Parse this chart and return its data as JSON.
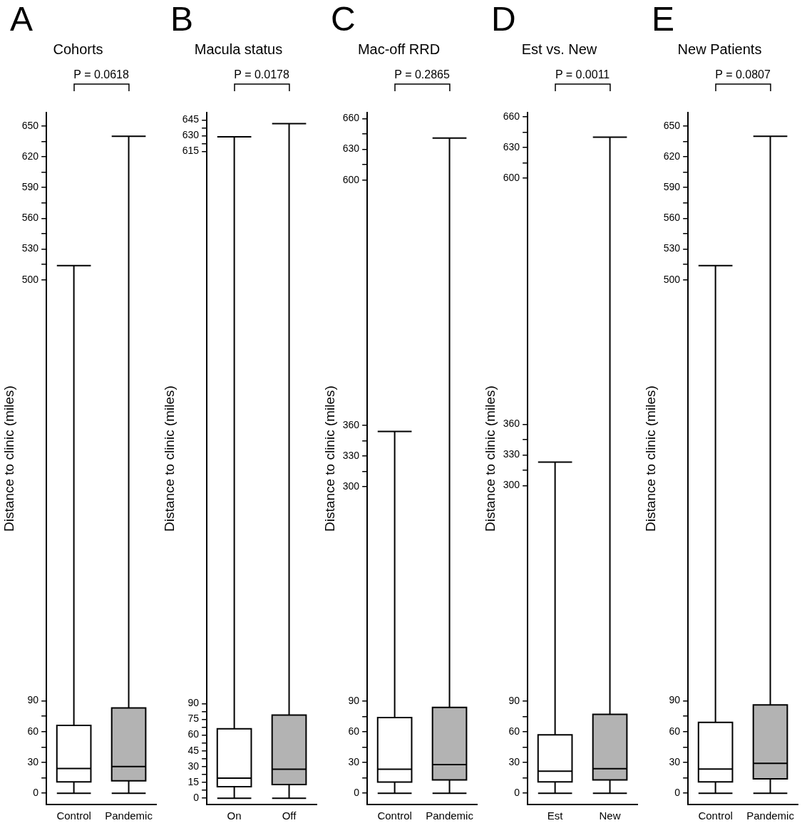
{
  "chart_data": [
    {
      "type": "box",
      "title": "Cohorts",
      "ylabel": "Distance to clinic (miles)",
      "annotations": [
        "A",
        "P = 0.0618"
      ],
      "categories": [
        "Control",
        "Pandemic"
      ],
      "colors": [
        "#ffffff",
        "#b3b3b3"
      ],
      "boxes": [
        {
          "low": 0,
          "q1": 11,
          "median": 24,
          "q3": 66,
          "high": 514
        },
        {
          "low": 0,
          "q1": 12,
          "median": 26,
          "q3": 83,
          "high": 640
        }
      ],
      "ylim": [
        -11,
        663
      ],
      "yticks": [
        0,
        {
          "value": 15,
          "label": null
        },
        30,
        {
          "value": 45,
          "label": null
        },
        60,
        {
          "value": 75,
          "label": null
        },
        90,
        500,
        {
          "value": 515,
          "label": null
        },
        530,
        {
          "value": 545,
          "label": null
        },
        560,
        {
          "value": 575,
          "label": null
        },
        590,
        {
          "value": 605,
          "label": null
        },
        620,
        {
          "value": 635,
          "label": null
        },
        650
      ]
    },
    {
      "type": "box",
      "title": "Macula status",
      "ylabel": "Distance to clinic (miles)",
      "annotations": [
        "B",
        "P = 0.0178"
      ],
      "categories": [
        "On",
        "Off"
      ],
      "colors": [
        "#ffffff",
        "#b3b3b3"
      ],
      "boxes": [
        {
          "low": 0,
          "q1": 11,
          "median": 19,
          "q3": 66,
          "high": 629
        },
        {
          "low": 0,
          "q1": 13,
          "median": 27.5,
          "q3": 79,
          "high": 641.5
        }
      ],
      "ylim": [
        -6,
        652
      ],
      "yticks": [
        0,
        {
          "value": 7.5,
          "label": null
        },
        15,
        {
          "value": 22.5,
          "label": null
        },
        30,
        {
          "value": 37.5,
          "label": null
        },
        45,
        {
          "value": 52.5,
          "label": null
        },
        60,
        {
          "value": 67.5,
          "label": null
        },
        75,
        {
          "value": 82.5,
          "label": null
        },
        90,
        615,
        {
          "value": 622.5,
          "label": null
        },
        630,
        {
          "value": 637.5,
          "label": null
        },
        645
      ]
    },
    {
      "type": "box",
      "title": "Mac-off RRD",
      "ylabel": "Distance to clinic (miles)",
      "annotations": [
        "C",
        "P = 0.2865"
      ],
      "categories": [
        "Control",
        "Pandemic"
      ],
      "colors": [
        "#ffffff",
        "#b3b3b3"
      ],
      "boxes": [
        {
          "low": 0,
          "q1": 11,
          "median": 23.5,
          "q3": 74,
          "high": 354
        },
        {
          "low": 0,
          "q1": 13,
          "median": 28,
          "q3": 84,
          "high": 641
        }
      ],
      "ylim": [
        -11,
        666
      ],
      "yticks": [
        0,
        {
          "value": 15,
          "label": null
        },
        30,
        {
          "value": 45,
          "label": null
        },
        60,
        {
          "value": 75,
          "label": null
        },
        90,
        300,
        {
          "value": 315,
          "label": null
        },
        330,
        {
          "value": 345,
          "label": null
        },
        360,
        600,
        {
          "value": 615,
          "label": null
        },
        630,
        {
          "value": 645,
          "label": null
        },
        660
      ]
    },
    {
      "type": "box",
      "title": "Est vs. New",
      "ylabel": "Distance to clinic (miles)",
      "annotations": [
        "D",
        "P = 0.0011"
      ],
      "categories": [
        "Est",
        "New"
      ],
      "colors": [
        "#ffffff",
        "#b3b3b3"
      ],
      "boxes": [
        {
          "low": 0,
          "q1": 11,
          "median": 21.5,
          "q3": 57,
          "high": 323
        },
        {
          "low": 0,
          "q1": 13,
          "median": 24,
          "q3": 77,
          "high": 640
        }
      ],
      "ylim": [
        -11,
        664
      ],
      "yticks": [
        0,
        {
          "value": 15,
          "label": null
        },
        30,
        {
          "value": 45,
          "label": null
        },
        60,
        {
          "value": 75,
          "label": null
        },
        90,
        300,
        {
          "value": 315,
          "label": null
        },
        330,
        {
          "value": 345,
          "label": null
        },
        360,
        600,
        {
          "value": 615,
          "label": null
        },
        630,
        {
          "value": 645,
          "label": null
        },
        660
      ]
    },
    {
      "type": "box",
      "title": "New Patients",
      "ylabel": "Distance to clinic (miles)",
      "annotations": [
        "E",
        "P = 0.0807"
      ],
      "categories": [
        "Control",
        "Pandemic"
      ],
      "colors": [
        "#ffffff",
        "#b3b3b3"
      ],
      "boxes": [
        {
          "low": 0,
          "q1": 11,
          "median": 23.5,
          "q3": 69,
          "high": 514
        },
        {
          "low": 0,
          "q1": 14,
          "median": 29,
          "q3": 86,
          "high": 640
        }
      ],
      "ylim": [
        -11,
        663
      ],
      "yticks": [
        0,
        {
          "value": 15,
          "label": null
        },
        30,
        {
          "value": 45,
          "label": null
        },
        60,
        {
          "value": 75,
          "label": null
        },
        90,
        500,
        {
          "value": 515,
          "label": null
        },
        530,
        {
          "value": 545,
          "label": null
        },
        560,
        {
          "value": 575,
          "label": null
        },
        590,
        {
          "value": 605,
          "label": null
        },
        620,
        {
          "value": 635,
          "label": null
        },
        650
      ]
    }
  ]
}
